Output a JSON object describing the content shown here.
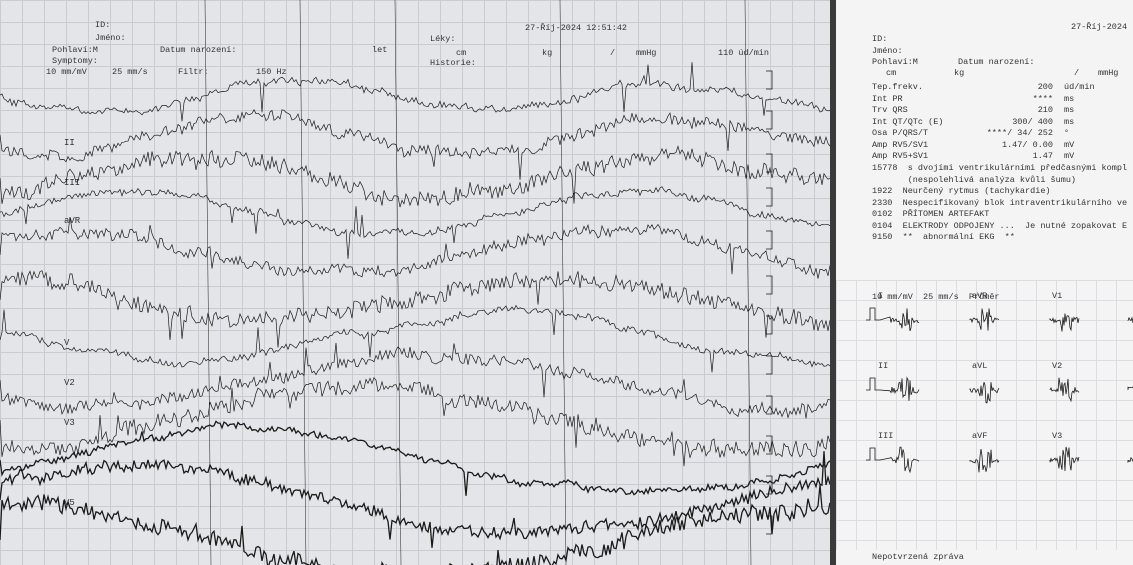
{
  "left_sheet": {
    "timestamp": "27-Říj-2024 12:51:42",
    "id_label": "ID:",
    "name_label": "Jméno:",
    "sex": "Pohlaví:M",
    "birth_label": "Datum narození:",
    "age_unit": "let",
    "meds_label": "Léky:",
    "height_unit": "cm",
    "weight_unit": "kg",
    "bp_sep": "/",
    "bp_unit": "mmHg",
    "rate": "110 úd/min",
    "history_label": "Historie:",
    "symptoms_label": "Symptomy:",
    "gain": "10 mm/mV",
    "speed": "25 mm/s",
    "filter_label": "Filtr:",
    "filter_value": "150 Hz",
    "leads": [
      "II",
      "III",
      "aVR",
      "V",
      "V2",
      "V3",
      "V5"
    ]
  },
  "right_sheet": {
    "timestamp": "27-Říj-2024",
    "id_label": "ID:",
    "name_label": "Jméno:",
    "sex": "Pohlaví:M",
    "birth_label": "Datum narození:",
    "height_unit": "cm",
    "weight_unit": "kg",
    "bp_sep": "/",
    "bp_unit": "mmHg",
    "measurements": [
      [
        "Tep.frekv.",
        "200",
        "úd/min"
      ],
      [
        "Int PR",
        "****",
        "ms"
      ],
      [
        "Trv QRS",
        "210",
        "ms"
      ],
      [
        "Int QT/QTc (E)",
        "300/ 400",
        "ms"
      ],
      [
        "Osa P/QRS/T",
        "****/ 34/ 252",
        "°"
      ],
      [
        "Amp RV5/SV1",
        "1.47/ 0.00",
        "mV"
      ],
      [
        "Amp RV5+SV1",
        "1.47",
        "mV"
      ]
    ],
    "interpretation": [
      "15778  s dvojími ventrikulárními předčasnými kompl",
      "       (nespolehlivá analýza kvůli šumu)",
      "1922  Neurčený rytmus (tachykardie)",
      "2330  Nespecifikovaný blok intraventrikulárního ve",
      "0102  PŘÍTOMEN ARTEFAKT",
      "0104  ELEKTRODY ODPOJENY ...  Je nutné zopakovat E",
      "9150  **  abnormální EKG  **"
    ],
    "median_header": "10 mm/mV  25 mm/s  Průměr",
    "median_leads": [
      "I",
      "aVR",
      "V1",
      "II",
      "aVL",
      "V2",
      "III",
      "aVF",
      "V3"
    ],
    "footer": "Nepotvrzená zpráva"
  }
}
